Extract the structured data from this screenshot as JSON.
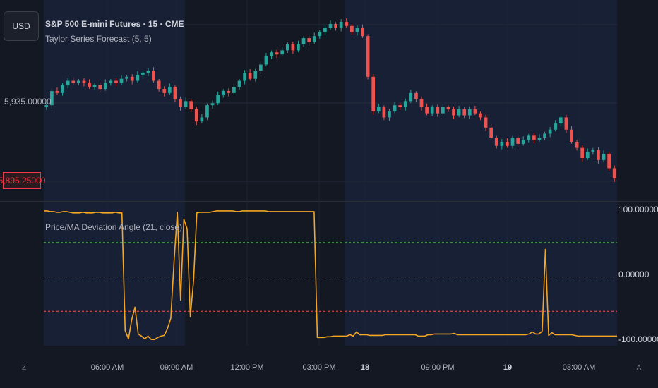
{
  "header": {
    "currency": "USD",
    "symbol_title": "S&P 500 E-mini Futures · 15 · CME",
    "indicator_label": "Taylor Series Forecast (5, 5)"
  },
  "price_axis": {
    "label": "5,935.00000",
    "last_price": "5,895.25000"
  },
  "oscillator": {
    "label": "Price/MA Deviation Angle (21, close)",
    "ticks": [
      "100.00000",
      "0.00000",
      "-100.00000"
    ],
    "upper_level": 50,
    "lower_level": -50,
    "line_color": "#f5a623",
    "upper_color": "#4caf50",
    "lower_color": "#ef5350"
  },
  "time_axis": {
    "labels": [
      {
        "text": "06:00 AM",
        "bold": false
      },
      {
        "text": "09:00 AM",
        "bold": false
      },
      {
        "text": "12:00 PM",
        "bold": false
      },
      {
        "text": "03:00 PM",
        "bold": false
      },
      {
        "text": "18",
        "bold": true
      },
      {
        "text": "09:00 PM",
        "bold": false
      },
      {
        "text": "19",
        "bold": true
      },
      {
        "text": "03:00 AM",
        "bold": false
      }
    ],
    "left_button": "Z",
    "right_button": "A"
  },
  "colors": {
    "up": "#26a69a",
    "down": "#ef5350",
    "background": "#141823",
    "session_shade": "#182035"
  },
  "chart_data": {
    "type": "candlestick",
    "closes": [
      5931,
      5938,
      5937,
      5941,
      5943,
      5942,
      5943,
      5942,
      5940,
      5941,
      5939,
      5942,
      5943,
      5942,
      5944,
      5945,
      5943,
      5946,
      5947,
      5948,
      5943,
      5939,
      5937,
      5940,
      5934,
      5930,
      5933,
      5929,
      5923,
      5925,
      5931,
      5932,
      5936,
      5938,
      5937,
      5940,
      5943,
      5947,
      5944,
      5948,
      5951,
      5955,
      5957,
      5956,
      5958,
      5961,
      5958,
      5961,
      5964,
      5962,
      5965,
      5967,
      5969,
      5971,
      5969,
      5972,
      5970,
      5967,
      5969,
      5965,
      5945,
      5928,
      5930,
      5925,
      5928,
      5931,
      5930,
      5933,
      5937,
      5934,
      5930,
      5927,
      5930,
      5927,
      5930,
      5929,
      5926,
      5929,
      5926,
      5929,
      5927,
      5925,
      5920,
      5915,
      5911,
      5913,
      5911,
      5915,
      5912,
      5914,
      5916,
      5914,
      5915,
      5917,
      5919,
      5922,
      5925,
      5919,
      5913,
      5910,
      5905,
      5908,
      5909,
      5904,
      5907,
      5900,
      5895
    ],
    "oscillator_values": [
      96,
      96,
      95,
      95,
      94,
      94,
      95,
      95,
      94,
      93,
      93,
      93,
      94,
      93,
      93,
      93,
      94,
      94,
      93,
      93,
      93,
      93,
      94,
      93,
      93,
      -78,
      -90,
      -62,
      -44,
      -83,
      -86,
      -90,
      -86,
      -91,
      -91,
      -88,
      -86,
      -85,
      -75,
      -60,
      22,
      94,
      -34,
      84,
      70,
      -58,
      -5,
      93,
      94,
      94,
      94,
      94,
      95,
      96,
      96,
      96,
      96,
      96,
      96,
      95,
      95,
      96,
      96,
      96,
      96,
      96,
      96,
      96,
      96,
      95,
      95,
      95,
      95,
      95,
      95,
      95,
      95,
      95,
      95,
      95,
      95,
      95,
      95,
      95,
      -88,
      -88,
      -88,
      -87,
      -87,
      -86,
      -86,
      -86,
      -86,
      -86,
      -84,
      -86,
      -80,
      -84,
      -84,
      -84,
      -85,
      -85,
      -85,
      -85,
      -85,
      -84,
      -84,
      -84,
      -84,
      -84,
      -84,
      -84,
      -84,
      -84,
      -84,
      -86,
      -86,
      -86,
      -84,
      -84,
      -83,
      -83,
      -83,
      -83,
      -83,
      -83,
      -82,
      -84,
      -84,
      -84,
      -84,
      -84,
      -84,
      -84,
      -84,
      -84,
      -84,
      -84,
      -84,
      -84,
      -84,
      -84,
      -84,
      -84,
      -84,
      -84,
      -84,
      -84,
      -84,
      -83,
      -80,
      -83,
      -83,
      -79,
      40,
      -85,
      -81,
      -84,
      -84,
      -84,
      -84,
      -84,
      -84,
      -85,
      -86,
      -86,
      -86,
      -86,
      -86,
      -86,
      -86,
      -86,
      -86,
      -86,
      -86,
      -86,
      -86
    ]
  }
}
